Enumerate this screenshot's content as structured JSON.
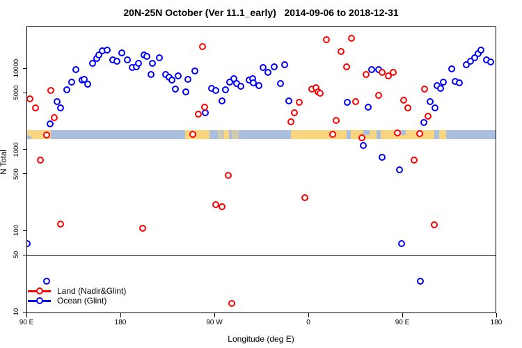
{
  "title": "20N-25N October (Ver 11.1_early)   2014-09-06 to 2018-12-31",
  "axes": {
    "x": {
      "label": "Longitude (deg E)",
      "ticks": [
        {
          "value": 90,
          "label": "90 E"
        },
        {
          "value": 180,
          "label": "180"
        },
        {
          "value": 270,
          "label": "90 W"
        },
        {
          "value": 360,
          "label": "0"
        },
        {
          "value": 450,
          "label": "90 E"
        },
        {
          "value": 540,
          "label": "180"
        }
      ]
    },
    "y": {
      "label": "N Total",
      "scale": "log10",
      "ticks": [
        {
          "value": 10,
          "label": "10"
        },
        {
          "value": 50,
          "label": "50"
        },
        {
          "value": 100,
          "label": "100"
        },
        {
          "value": 500,
          "label": "500"
        },
        {
          "value": 1000,
          "label": "1000"
        },
        {
          "value": 5000,
          "label": "5000"
        },
        {
          "value": 10000,
          "label": "10000"
        }
      ]
    }
  },
  "legend": [
    {
      "label": "Land (Nadir&Glint)",
      "color": "#ff0000"
    },
    {
      "label": "Ocean (Glint)",
      "color": "#0000ff"
    }
  ],
  "colors": {
    "land_points": "#ff0000",
    "ocean_points": "#0000ff",
    "strip_ocean": "#aabedd",
    "strip_land": "#f8d57e",
    "frame": "#000000"
  },
  "map_strip": {
    "description": "world coastline band 20N-25N drawn across plot",
    "segments": [
      {
        "from": 90,
        "to": 112.7,
        "kind": "land"
      },
      {
        "from": 241.3,
        "to": 264.7,
        "kind": "land"
      },
      {
        "from": 278,
        "to": 283,
        "kind": "land"
      },
      {
        "from": 272.7,
        "to": 276.7,
        "kind": "land_light"
      },
      {
        "from": 286,
        "to": 292.7,
        "kind": "land_light"
      },
      {
        "from": 342.7,
        "to": 396,
        "kind": "land"
      },
      {
        "from": 400,
        "to": 424.7,
        "kind": "land"
      },
      {
        "from": 428.7,
        "to": 480,
        "kind": "land"
      },
      {
        "from": 484.7,
        "to": 491.3,
        "kind": "land"
      },
      {
        "from": 412,
        "to": 418,
        "kind": "sea_notch_top"
      },
      {
        "from": 444.7,
        "to": 452.7,
        "kind": "sea_notch_top"
      },
      {
        "from": 90,
        "to": 94,
        "kind": "sea_notch_bottom"
      }
    ]
  },
  "chart_data": {
    "type": "scatter",
    "title": "20N-25N October (Ver 11.1_early)   2014-09-06 to 2018-12-31",
    "xlabel": "Longitude (deg E)",
    "ylabel": "N Total",
    "y_scale": "log",
    "xlim": [
      90,
      540
    ],
    "ylim": [
      9.5,
      33000
    ],
    "x_axis_note": "longitude increases eastward from 90E; 270=90W, 360=0, 450=90E, 540=180",
    "ref_line_y": 50,
    "legend_position": "bottom-left",
    "grid": false,
    "series": [
      {
        "name": "Ocean (Glint)",
        "color": "#0000ff",
        "points": [
          [
            90,
            70
          ],
          [
            109.3,
            24
          ],
          [
            112,
            2100
          ],
          [
            118.7,
            3950
          ],
          [
            122,
            3250
          ],
          [
            128,
            5530
          ],
          [
            133.3,
            6870
          ],
          [
            137.3,
            9620
          ],
          [
            142.7,
            7150
          ],
          [
            145.3,
            7300
          ],
          [
            148,
            6470
          ],
          [
            152.7,
            11700
          ],
          [
            156.7,
            13200
          ],
          [
            159.3,
            14600
          ],
          [
            162,
            16400
          ],
          [
            166.7,
            17000
          ],
          [
            172,
            12900
          ],
          [
            176,
            12400
          ],
          [
            181.3,
            15700
          ],
          [
            186,
            12700
          ],
          [
            191.3,
            10400
          ],
          [
            194.7,
            10600
          ],
          [
            197.3,
            11500
          ],
          [
            202,
            14800
          ],
          [
            205.3,
            14000
          ],
          [
            208.7,
            8530
          ],
          [
            210,
            11500
          ],
          [
            217.3,
            13700
          ],
          [
            222.7,
            8530
          ],
          [
            226,
            7890
          ],
          [
            228.7,
            7150
          ],
          [
            232,
            5640
          ],
          [
            234.7,
            8200
          ],
          [
            242,
            5210
          ],
          [
            244,
            7300
          ],
          [
            251.3,
            9420
          ],
          [
            261.3,
            2830
          ],
          [
            267.3,
            5750
          ],
          [
            270.7,
            5420
          ],
          [
            276.7,
            4030
          ],
          [
            280,
            5530
          ],
          [
            284,
            6870
          ],
          [
            288,
            7440
          ],
          [
            291.3,
            6530
          ],
          [
            295.3,
            6030
          ],
          [
            302.7,
            7150
          ],
          [
            306,
            7440
          ],
          [
            307.3,
            6610
          ],
          [
            312,
            6190
          ],
          [
            316,
            10400
          ],
          [
            320.7,
            9060
          ],
          [
            326.7,
            10600
          ],
          [
            332.7,
            6530
          ],
          [
            336.7,
            11200
          ],
          [
            340.7,
            4030
          ],
          [
            396.7,
            3870
          ],
          [
            412,
            1120
          ],
          [
            417.3,
            3370
          ],
          [
            420,
            9800
          ],
          [
            426.7,
            9620
          ],
          [
            430,
            800
          ],
          [
            447.3,
            571
          ],
          [
            449.3,
            70
          ],
          [
            467.3,
            24
          ],
          [
            470,
            2150
          ],
          [
            476,
            3950
          ],
          [
            480.7,
            3250
          ],
          [
            482.7,
            6190
          ],
          [
            486,
            5750
          ],
          [
            488.7,
            6870
          ],
          [
            496.7,
            10000
          ],
          [
            500,
            6950
          ],
          [
            504,
            6610
          ],
          [
            510.7,
            11200
          ],
          [
            515.3,
            12400
          ],
          [
            518.7,
            13700
          ],
          [
            522,
            15300
          ],
          [
            525.3,
            16800
          ],
          [
            530,
            12700
          ],
          [
            534,
            12100
          ]
        ]
      },
      {
        "name": "Land (Nadir&Glint)",
        "color": "#ff0000",
        "points": [
          [
            92.7,
            4200
          ],
          [
            98,
            3250
          ],
          [
            102.7,
            740
          ],
          [
            108.7,
            1530
          ],
          [
            112.7,
            5420
          ],
          [
            116,
            2510
          ],
          [
            122,
            122
          ],
          [
            201.3,
            107
          ],
          [
            249.3,
            1540
          ],
          [
            254,
            2720
          ],
          [
            258,
            18500
          ],
          [
            260,
            3370
          ],
          [
            271.3,
            213
          ],
          [
            276.7,
            197
          ],
          [
            282.7,
            487
          ],
          [
            286,
            12.9
          ],
          [
            343.3,
            2190
          ],
          [
            346,
            2830
          ],
          [
            351.3,
            3870
          ],
          [
            356,
            255
          ],
          [
            363.3,
            5640
          ],
          [
            366.7,
            5860
          ],
          [
            368.7,
            5210
          ],
          [
            371.3,
            5010
          ],
          [
            376.7,
            22900
          ],
          [
            382.7,
            1540
          ],
          [
            386,
            2280
          ],
          [
            391.3,
            16100
          ],
          [
            396,
            10600
          ],
          [
            401.3,
            23800
          ],
          [
            404.7,
            3950
          ],
          [
            411.3,
            1400
          ],
          [
            414.7,
            8530
          ],
          [
            426.7,
            4720
          ],
          [
            430,
            9060
          ],
          [
            436,
            8050
          ],
          [
            441.3,
            9060
          ],
          [
            445.3,
            1600
          ],
          [
            451.3,
            4110
          ],
          [
            455.3,
            3250
          ],
          [
            461.3,
            740
          ],
          [
            466,
            1570
          ],
          [
            470.7,
            5640
          ],
          [
            474,
            2610
          ],
          [
            480,
            120
          ]
        ]
      }
    ]
  }
}
